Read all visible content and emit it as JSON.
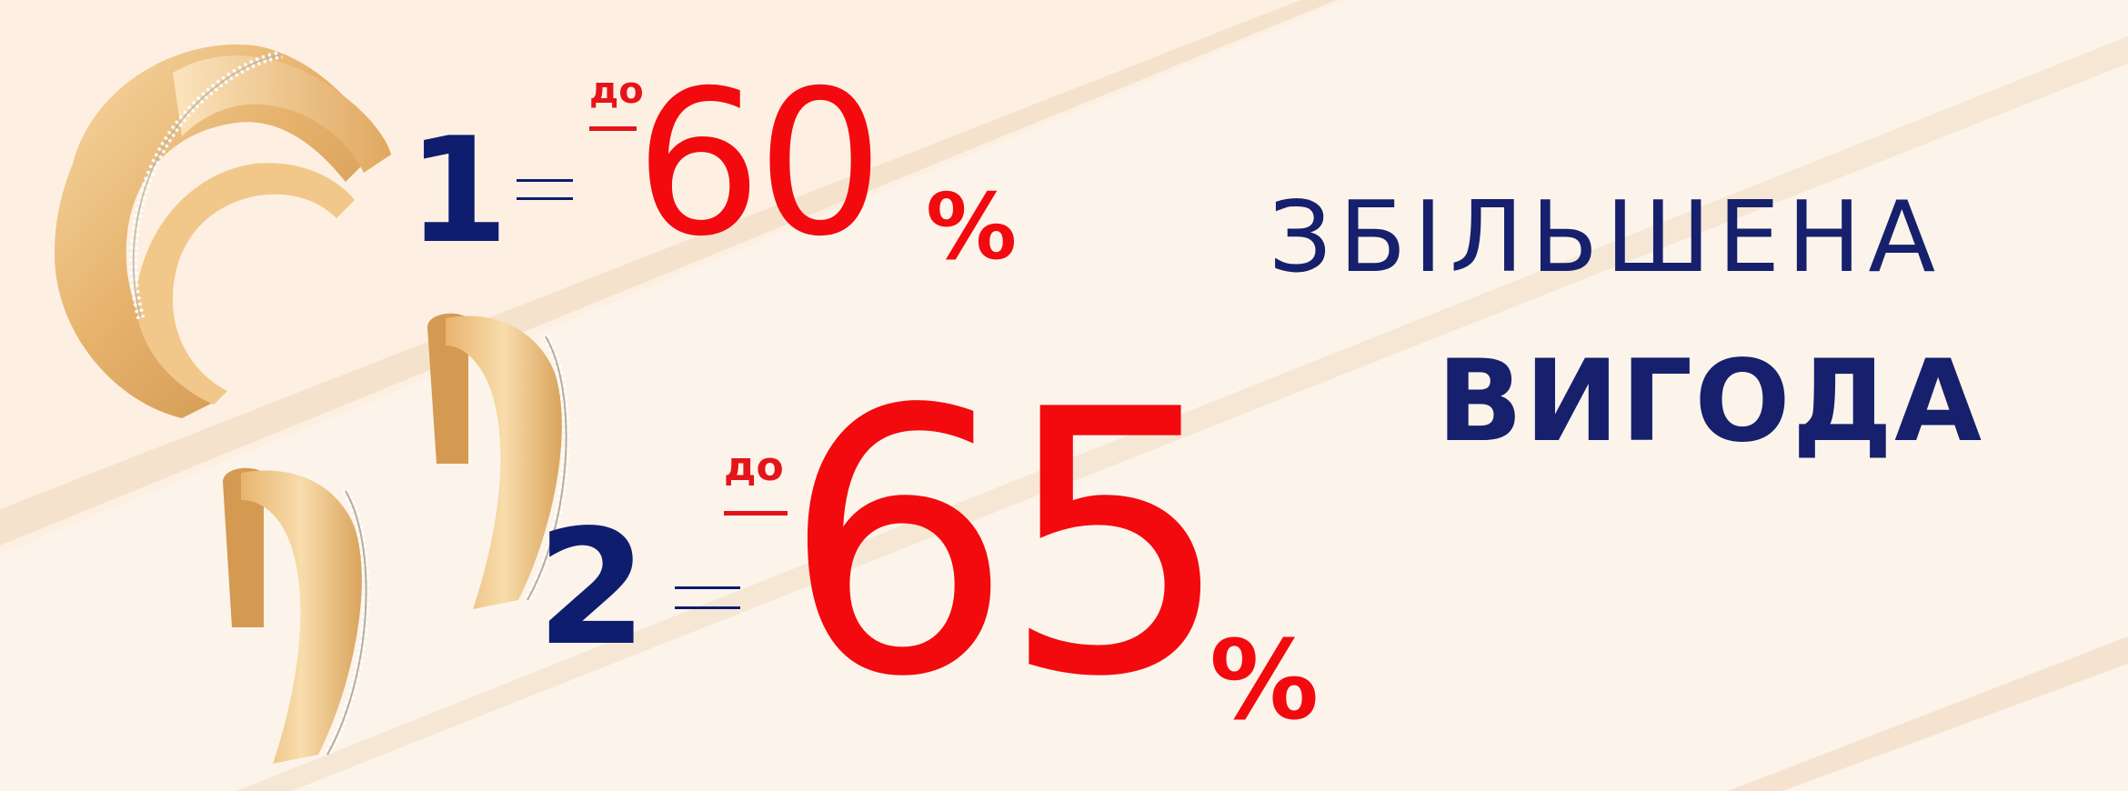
{
  "colors": {
    "background_light": "#fdf0e2",
    "background_stripe": "#f6e2cc",
    "navy": "#16206d",
    "red": "#f20a0f",
    "gold": "#e9b46f"
  },
  "offers": [
    {
      "quantity": "1",
      "prefix": "до",
      "value": "60",
      "percent": "%"
    },
    {
      "quantity": "2",
      "prefix": "до",
      "value": "65",
      "percent": "%"
    }
  ],
  "headline": {
    "line1": "ЗБІЛЬШЕНА",
    "line2": "ВИГОДА"
  },
  "images": {
    "ring": "gold-ring-icon",
    "earrings": "gold-earrings-icon"
  }
}
